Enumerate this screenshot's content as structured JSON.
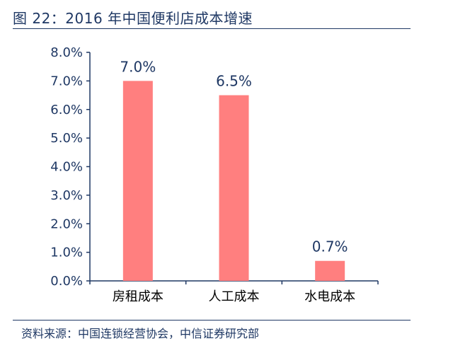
{
  "title": "图 22：2016 年中国便利店成本增速",
  "source": "资料来源：中国连锁经营协会，中信证券研究部",
  "chart_data": {
    "type": "bar",
    "categories": [
      "房租成本",
      "人工成本",
      "水电成本"
    ],
    "values": [
      7.0,
      6.5,
      0.7
    ],
    "data_labels": [
      "7.0%",
      "6.5%",
      "0.7%"
    ],
    "ylim": [
      0,
      8
    ],
    "yticks": [
      "0.0%",
      "1.0%",
      "2.0%",
      "3.0%",
      "4.0%",
      "5.0%",
      "6.0%",
      "7.0%",
      "8.0%"
    ],
    "bar_color": "#ff7f7f",
    "grid": false,
    "legend": "none"
  }
}
